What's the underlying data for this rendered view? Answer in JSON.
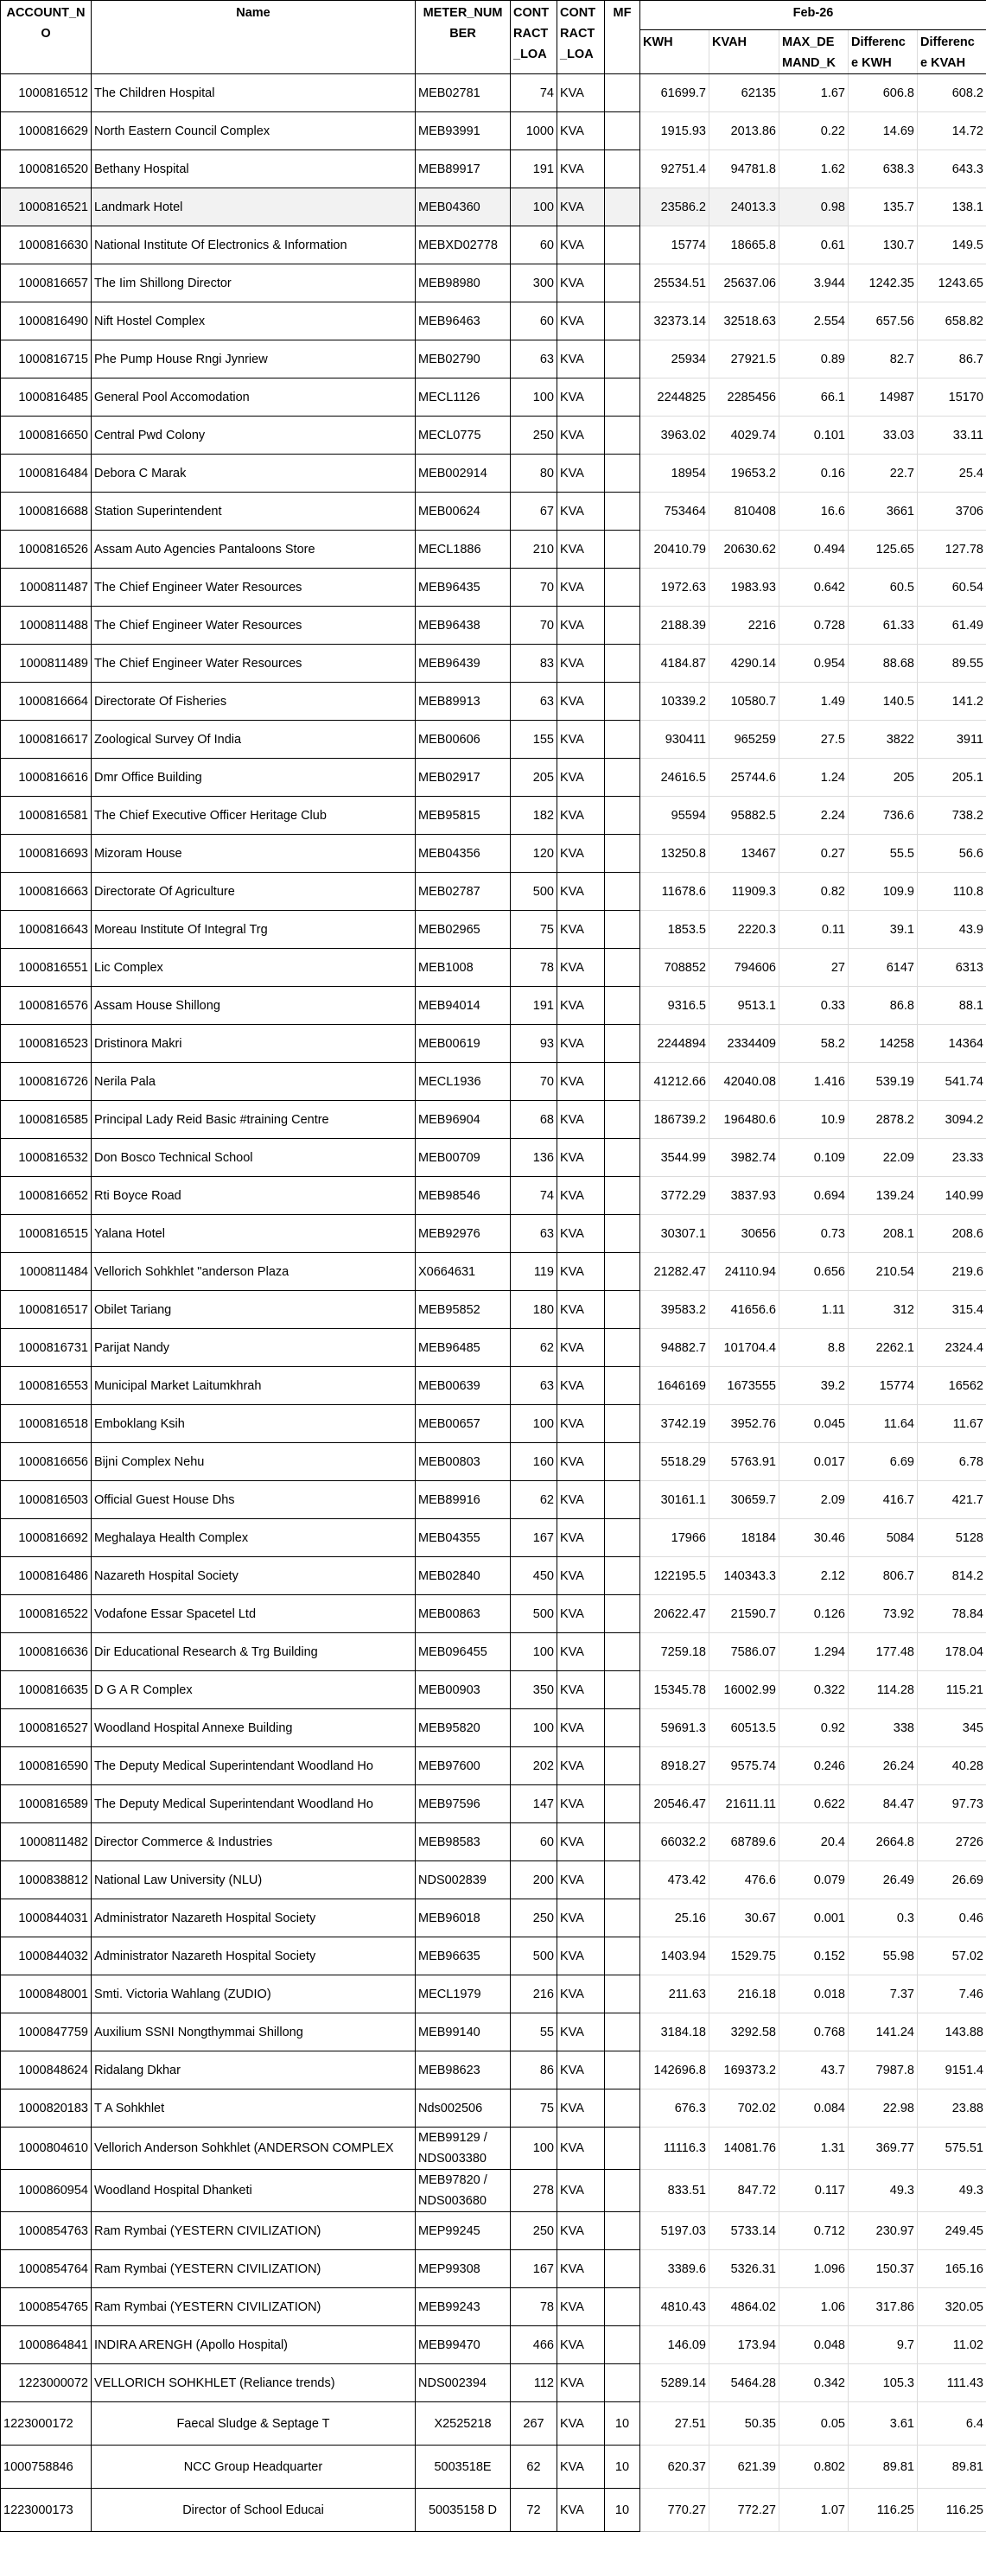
{
  "header": {
    "account_no": "ACCOUNT_N O",
    "name": "Name",
    "meter_number": "METER_NUM BER",
    "contract_load": "CONT RACT _LOA",
    "contract_load_unit": "CONT RACT _LOA",
    "mf": "MF",
    "period": "Feb-26",
    "kwh": "KWH",
    "kvah": "KVAH",
    "max_demand": "MAX_DE MAND_K",
    "diff_kwh": "Differenc e KWH",
    "diff_kvah": "Differenc e KVAH"
  },
  "colors": {
    "grid_dark": "#000000",
    "grid_light": "#dcdcdc",
    "highlight_row": "#f2f2f2"
  },
  "rows": [
    [
      "1000816512",
      "The Children  Hospital",
      "MEB02781",
      "74",
      "KVA",
      "",
      "61699.7",
      "62135",
      "1.67",
      "606.8",
      "608.2"
    ],
    [
      "1000816629",
      "North Eastern Council Complex",
      "MEB93991",
      "1000",
      "KVA",
      "",
      "1915.93",
      "2013.86",
      "0.22",
      "14.69",
      "14.72"
    ],
    [
      "1000816520",
      "Bethany  Hospital",
      "MEB89917",
      "191",
      "KVA",
      "",
      "92751.4",
      "94781.8",
      "1.62",
      "638.3",
      "643.3"
    ],
    [
      "1000816521",
      "Landmark  Hotel",
      "MEB04360",
      "100",
      "KVA",
      "",
      "23586.2",
      "24013.3",
      "0.98",
      "135.7",
      "138.1"
    ],
    [
      "1000816630",
      "National Institute Of Electronics & Information",
      "MEBXD02778",
      "60",
      "KVA",
      "",
      "15774",
      "18665.8",
      "0.61",
      "130.7",
      "149.5"
    ],
    [
      "1000816657",
      "The Iim Shillong Director",
      "MEB98980",
      "300",
      "KVA",
      "",
      "25534.51",
      "25637.06",
      "3.944",
      "1242.35",
      "1243.65"
    ],
    [
      "1000816490",
      "Nift Hostel Complex",
      "MEB96463",
      "60",
      "KVA",
      "",
      "32373.14",
      "32518.63",
      "2.554",
      "657.56",
      "658.82"
    ],
    [
      "1000816715",
      "Phe Pump House Rngi Jynriew",
      "MEB02790",
      "63",
      "KVA",
      "",
      "25934",
      "27921.5",
      "0.89",
      "82.7",
      "86.7"
    ],
    [
      "1000816485",
      "General Pool Accomodation",
      "MECL1126",
      "100",
      "KVA",
      "",
      "2244825",
      "2285456",
      "66.1",
      "14987",
      "15170"
    ],
    [
      "1000816650",
      "Central Pwd Colony",
      "MECL0775",
      "250",
      "KVA",
      "",
      "3963.02",
      "4029.74",
      "0.101",
      "33.03",
      "33.11"
    ],
    [
      "1000816484",
      "Debora C Marak",
      "MEB002914",
      "80",
      "KVA",
      "",
      "18954",
      "19653.2",
      "0.16",
      "22.7",
      "25.4"
    ],
    [
      "1000816688",
      "Station  Superintendent",
      "MEB00624",
      "67",
      "KVA",
      "",
      "753464",
      "810408",
      "16.6",
      "3661",
      "3706"
    ],
    [
      "1000816526",
      "Assam Auto Agencies Pantaloons Store",
      "MECL1886",
      "210",
      "KVA",
      "",
      "20410.79",
      "20630.62",
      "0.494",
      "125.65",
      "127.78"
    ],
    [
      "1000811487",
      "The Chief Engineer  Water Resources",
      "MEB96435",
      "70",
      "KVA",
      "",
      "1972.63",
      "1983.93",
      "0.642",
      "60.5",
      "60.54"
    ],
    [
      "1000811488",
      "The Chief Engineer  Water Resources",
      "MEB96438",
      "70",
      "KVA",
      "",
      "2188.39",
      "2216",
      "0.728",
      "61.33",
      "61.49"
    ],
    [
      "1000811489",
      "The Chief Engineer  Water Resources",
      "MEB96439",
      "83",
      "KVA",
      "",
      "4184.87",
      "4290.14",
      "0.954",
      "88.68",
      "89.55"
    ],
    [
      "1000816664",
      "Directorate Of Fisheries",
      "MEB89913",
      "63",
      "KVA",
      "",
      "10339.2",
      "10580.7",
      "1.49",
      "140.5",
      "141.2"
    ],
    [
      "1000816617",
      "Zoological Survey Of India",
      "MEB00606",
      "155",
      "KVA",
      "",
      "930411",
      "965259",
      "27.5",
      "3822",
      "3911"
    ],
    [
      "1000816616",
      "Dmr Office Building",
      "MEB02917",
      "205",
      "KVA",
      "",
      "24616.5",
      "25744.6",
      "1.24",
      "205",
      "205.1"
    ],
    [
      "1000816581",
      "The Chief Executive Officer  Heritage Club",
      "MEB95815",
      "182",
      "KVA",
      "",
      "95594",
      "95882.5",
      "2.24",
      "736.6",
      "738.2"
    ],
    [
      "1000816693",
      "Mizoram  House",
      "MEB04356",
      "120",
      "KVA",
      "",
      "13250.8",
      "13467",
      "0.27",
      "55.5",
      "56.6"
    ],
    [
      "1000816663",
      "Directorate Of Agriculture",
      "MEB02787",
      "500",
      "KVA",
      "",
      "11678.6",
      "11909.3",
      "0.82",
      "109.9",
      "110.8"
    ],
    [
      "1000816643",
      "Moreau Institute Of Integral Trg",
      "MEB02965",
      "75",
      "KVA",
      "",
      "1853.5",
      "2220.3",
      "0.11",
      "39.1",
      "43.9"
    ],
    [
      "1000816551",
      "Lic  Complex",
      "MEB1008",
      "78",
      "KVA",
      "",
      "708852",
      "794606",
      "27",
      "6147",
      "6313"
    ],
    [
      "1000816576",
      "Assam House Shillong",
      "MEB94014",
      "191",
      "KVA",
      "",
      "9316.5",
      "9513.1",
      "0.33",
      "86.8",
      "88.1"
    ],
    [
      "1000816523",
      "Dristinora  Makri",
      "MEB00619",
      "93",
      "KVA",
      "",
      "2244894",
      "2334409",
      "58.2",
      "14258",
      "14364"
    ],
    [
      "1000816726",
      "Nerila  Pala",
      "MECL1936",
      "70",
      "KVA",
      "",
      "41212.66",
      "42040.08",
      "1.416",
      "539.19",
      "541.74"
    ],
    [
      "1000816585",
      "Principal  Lady Reid Basic #training Centre",
      "MEB96904",
      "68",
      "KVA",
      "",
      "186739.2",
      "196480.6",
      "10.9",
      "2878.2",
      "3094.2"
    ],
    [
      "1000816532",
      "Don Bosco Technical School",
      "MEB00709",
      "136",
      "KVA",
      "",
      "3544.99",
      "3982.74",
      "0.109",
      "22.09",
      "23.33"
    ],
    [
      "1000816652",
      "Rti Boyce Road",
      "MEB98546",
      "74",
      "KVA",
      "",
      "3772.29",
      "3837.93",
      "0.694",
      "139.24",
      "140.99"
    ],
    [
      "1000816515",
      "Yalana  Hotel",
      "MEB92976",
      "63",
      "KVA",
      "",
      "30307.1",
      "30656",
      "0.73",
      "208.1",
      "208.6"
    ],
    [
      "1000811484",
      "Vellorich  Sohkhlet \"anderson Plaza",
      "X0664631",
      "119",
      "KVA",
      "",
      "21282.47",
      "24110.94",
      "0.656",
      "210.54",
      "219.6"
    ],
    [
      "1000816517",
      "Obilet  Tariang",
      "MEB95852",
      "180",
      "KVA",
      "",
      "39583.2",
      "41656.6",
      "1.11",
      "312",
      "315.4"
    ],
    [
      "1000816731",
      "Parijat  Nandy",
      "MEB96485",
      "62",
      "KVA",
      "",
      "94882.7",
      "101704.4",
      "8.8",
      "2262.1",
      "2324.4"
    ],
    [
      "1000816553",
      "Municipal Market Laitumkhrah",
      "MEB00639",
      "63",
      "KVA",
      "",
      "1646169",
      "1673555",
      "39.2",
      "15774",
      "16562"
    ],
    [
      "1000816518",
      "Emboklang  Ksih",
      "MEB00657",
      "100",
      "KVA",
      "",
      "3742.19",
      "3952.76",
      "0.045",
      "11.64",
      "11.67"
    ],
    [
      "1000816656",
      "Bijni Complex Nehu",
      "MEB00803",
      "160",
      "KVA",
      "",
      "5518.29",
      "5763.91",
      "0.017",
      "6.69",
      "6.78"
    ],
    [
      "1000816503",
      "Official Guest House Dhs",
      "MEB89916",
      "62",
      "KVA",
      "",
      "30161.1",
      "30659.7",
      "2.09",
      "416.7",
      "421.7"
    ],
    [
      "1000816692",
      "Meghalaya Health Complex",
      "MEB04355",
      "167",
      "KVA",
      "",
      "17966",
      "18184",
      "30.46",
      "5084",
      "5128"
    ],
    [
      "1000816486",
      "Nazareth  Hospital Society",
      "MEB02840",
      "450",
      "KVA",
      "",
      "122195.5",
      "140343.3",
      "2.12",
      "806.7",
      "814.2"
    ],
    [
      "1000816522",
      "Vodafone Essar Spacetel Ltd",
      "MEB00863",
      "500",
      "KVA",
      "",
      "20622.47",
      "21590.7",
      "0.126",
      "73.92",
      "78.84"
    ],
    [
      "1000816636",
      "Dir Educational Research & Trg Building",
      "MEB096455",
      "100",
      "KVA",
      "",
      "7259.18",
      "7586.07",
      "1.294",
      "177.48",
      "178.04"
    ],
    [
      "1000816635",
      "D G A R  Complex",
      "MEB00903",
      "350",
      "KVA",
      "",
      "15345.78",
      "16002.99",
      "0.322",
      "114.28",
      "115.21"
    ],
    [
      "1000816527",
      "Woodland Hospital Annexe Building",
      "MEB95820",
      "100",
      "KVA",
      "",
      "59691.3",
      "60513.5",
      "0.92",
      "338",
      "345"
    ],
    [
      "1000816590",
      "The Deputy Medical Superintendant  Woodland Ho",
      "MEB97600",
      "202",
      "KVA",
      "",
      "8918.27",
      "9575.74",
      "0.246",
      "26.24",
      "40.28"
    ],
    [
      "1000816589",
      "The Deputy Medical Superintendant  Woodland Ho",
      "MEB97596",
      "147",
      "KVA",
      "",
      "20546.47",
      "21611.11",
      "0.622",
      "84.47",
      "97.73"
    ],
    [
      "1000811482",
      "Director Commerce &  Industries",
      "MEB98583",
      "60",
      "KVA",
      "",
      "66032.2",
      "68789.6",
      "20.4",
      "2664.8",
      "2726"
    ],
    [
      "1000838812",
      "National Law University (NLU)",
      "NDS002839",
      "200",
      "KVA",
      "",
      "473.42",
      "476.6",
      "0.079",
      "26.49",
      "26.69"
    ],
    [
      "1000844031",
      "Administrator Nazareth Hospital Society",
      "MEB96018",
      "250",
      "KVA",
      "",
      "25.16",
      "30.67",
      "0.001",
      "0.3",
      "0.46"
    ],
    [
      "1000844032",
      "Administrator Nazareth Hospital Society",
      "MEB96635",
      "500",
      "KVA",
      "",
      "1403.94",
      "1529.75",
      "0.152",
      "55.98",
      "57.02"
    ],
    [
      "1000848001",
      "Smti. Victoria Wahlang (ZUDIO)",
      "MECL1979",
      "216",
      "KVA",
      "",
      "211.63",
      "216.18",
      "0.018",
      "7.37",
      "7.46"
    ],
    [
      "1000847759",
      "Auxilium SSNI Nongthymmai Shillong",
      "MEB99140",
      "55",
      "KVA",
      "",
      "3184.18",
      "3292.58",
      "0.768",
      "141.24",
      "143.88"
    ],
    [
      "1000848624",
      "Ridalang Dkhar",
      "MEB98623",
      "86",
      "KVA",
      "",
      "142696.8",
      "169373.2",
      "43.7",
      "7987.8",
      "9151.4"
    ],
    [
      "1000820183",
      "T A Sohkhlet",
      "Nds002506",
      "75",
      "KVA",
      "",
      "676.3",
      "702.02",
      "0.084",
      "22.98",
      "23.88"
    ],
    [
      "1000804610",
      "Vellorich Anderson Sohkhlet (ANDERSON COMPLEX",
      "MEB99129 / NDS003380",
      "100",
      "KVA",
      "",
      "11116.3",
      "14081.76",
      "1.31",
      "369.77",
      "575.51"
    ],
    [
      "1000860954",
      "Woodland Hospital Dhanketi",
      "MEB97820 / NDS003680",
      "278",
      "KVA",
      "",
      "833.51",
      "847.72",
      "0.117",
      "49.3",
      "49.3"
    ],
    [
      "1000854763",
      "Ram Rymbai (YESTERN CIVILIZATION)",
      "MEP99245",
      "250",
      "KVA",
      "",
      "5197.03",
      "5733.14",
      "0.712",
      "230.97",
      "249.45"
    ],
    [
      "1000854764",
      "Ram Rymbai (YESTERN CIVILIZATION)",
      "MEP99308",
      "167",
      "KVA",
      "",
      "3389.6",
      "5326.31",
      "1.096",
      "150.37",
      "165.16"
    ],
    [
      "1000854765",
      "Ram Rymbai (YESTERN CIVILIZATION)",
      "MEB99243",
      "78",
      "KVA",
      "",
      "4810.43",
      "4864.02",
      "1.06",
      "317.86",
      "320.05"
    ],
    [
      "1000864841",
      "INDIRA ARENGH (Apollo Hospital)",
      "MEB99470",
      "466",
      "KVA",
      "",
      "146.09",
      "173.94",
      "0.048",
      "9.7",
      "11.02"
    ],
    [
      "1223000072",
      "VELLORICH SOHKHLET (Reliance trends)",
      "NDS002394",
      "112",
      "KVA",
      "",
      "5289.14",
      "5464.28",
      "0.342",
      "105.3",
      "111.43"
    ],
    [
      "1223000172",
      "Faecal Sludge & Septage T",
      "X2525218",
      "267",
      "KVA",
      "10",
      "27.51",
      "50.35",
      "0.05",
      "3.61",
      "6.4"
    ],
    [
      "1000758846",
      "NCC Group Headquarter",
      "5003518E",
      "62",
      "KVA",
      "10",
      "620.37",
      "621.39",
      "0.802",
      "89.81",
      "89.81"
    ],
    [
      "1223000173",
      "Director of School Educai",
      "50035158 D",
      "72",
      "KVA",
      "10",
      "770.27",
      "772.27",
      "1.07",
      "116.25",
      "116.25"
    ]
  ]
}
